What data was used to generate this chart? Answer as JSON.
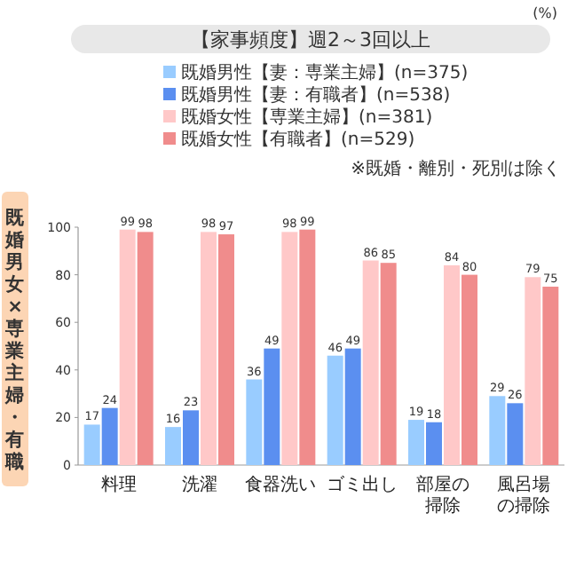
{
  "chart_data": {
    "type": "bar",
    "title": "【家事頻度】週2～3回以上",
    "ylabel": "既婚男女×専業主婦・有職",
    "annotations": [
      "(%)",
      "※既婚・離別・死別は除く"
    ],
    "categories": [
      "料理",
      "洗濯",
      "食器洗い",
      "ゴミ出し",
      "部屋の掃除",
      "風呂場の掃除"
    ],
    "series": [
      {
        "name": "既婚男性【妻：専業主婦】(n=375)",
        "color": "#99ccff",
        "values": [
          17,
          16,
          36,
          46,
          19,
          29
        ]
      },
      {
        "name": "既婚男性【妻：有職者】(n=538)",
        "color": "#5b8ff0",
        "values": [
          24,
          23,
          49,
          49,
          18,
          26
        ]
      },
      {
        "name": "既婚女性【専業主婦】(n=381)",
        "color": "#ffc8c8",
        "values": [
          99,
          98,
          98,
          86,
          84,
          79
        ]
      },
      {
        "name": "既婚女性【有職者】(n=529)",
        "color": "#f08c8c",
        "values": [
          98,
          97,
          99,
          85,
          80,
          75
        ]
      }
    ],
    "ylim": [
      0,
      100
    ],
    "yticks": [
      0,
      20,
      40,
      60,
      80,
      100
    ],
    "data_labels": true,
    "legend": "top right",
    "grid": false
  }
}
